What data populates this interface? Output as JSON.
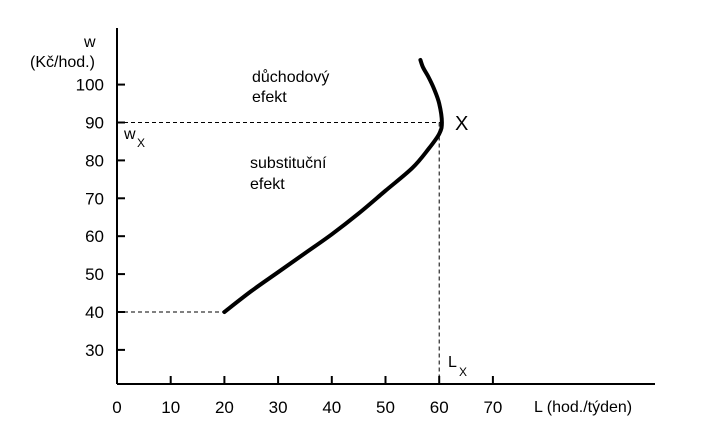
{
  "chart_data": {
    "type": "line",
    "xlabel": "L (hod./týden)",
    "ylabel_line1": "w",
    "ylabel_line2": "(Kč/hod.)",
    "xlim": [
      0,
      70
    ],
    "ylim": [
      21,
      110
    ],
    "x_ticks": [
      0,
      10,
      20,
      30,
      40,
      50,
      60,
      70
    ],
    "y_ticks": [
      30,
      40,
      50,
      60,
      70,
      80,
      90,
      100
    ],
    "series": [
      {
        "x": [
          20,
          25,
          30,
          35,
          40,
          45,
          50,
          55,
          58,
          60,
          60.5,
          60,
          59,
          58,
          57,
          56.5
        ],
        "y": [
          40,
          45.5,
          50.5,
          55.5,
          60.5,
          66,
          72,
          78,
          83,
          87,
          90,
          95,
          99,
          102,
          104.5,
          106.5
        ]
      }
    ],
    "reference_lines": {
      "wx": 90,
      "Lx": 60,
      "w_min": 40
    },
    "annotations": {
      "income_effect_line1": "důchodový",
      "income_effect_line2": "efekt",
      "substitution_effect_line1": "substituční",
      "substitution_effect_line2": "efekt",
      "point_label": "X",
      "wx_label": "w",
      "wx_sub": "X",
      "lx_label": "L",
      "lx_sub": "X"
    }
  }
}
